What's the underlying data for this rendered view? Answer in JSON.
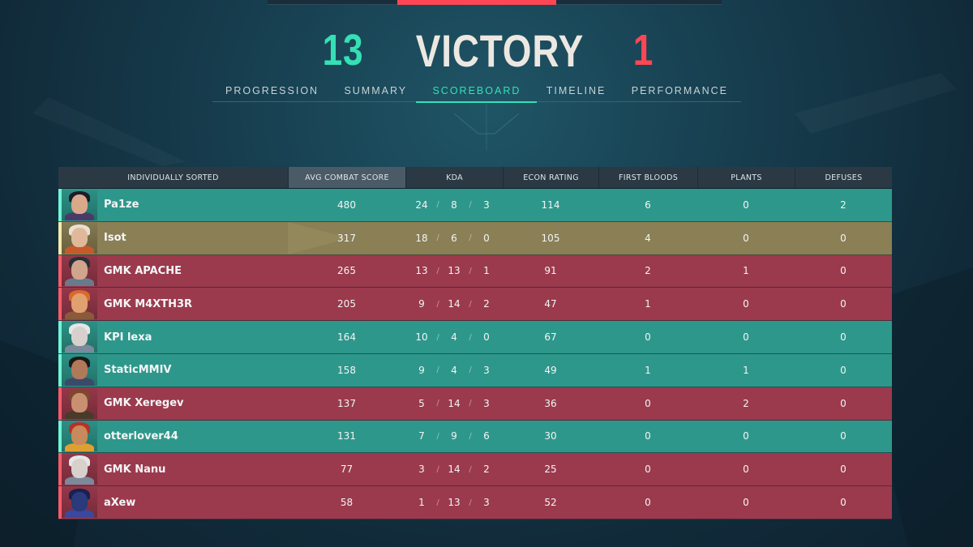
{
  "header": {
    "ally_score": "13",
    "result": "VICTORY",
    "enemy_score": "1"
  },
  "tabs": [
    {
      "label": "PROGRESSION",
      "active": false
    },
    {
      "label": "SUMMARY",
      "active": false
    },
    {
      "label": "SCOREBOARD",
      "active": true
    },
    {
      "label": "TIMELINE",
      "active": false
    },
    {
      "label": "PERFORMANCE",
      "active": false
    }
  ],
  "scoreboard": {
    "headers": {
      "name": "INDIVIDUALLY SORTED",
      "acs": "AVG COMBAT SCORE",
      "kda": "KDA",
      "econ": "ECON RATING",
      "fb": "FIRST BLOODS",
      "plants": "PLANTS",
      "defuses": "DEFUSES"
    },
    "colors": {
      "ally": "#2e978b",
      "enemy": "#9b3a4d",
      "self": "#8a7f55",
      "accent": "#35e0b5",
      "red": "#ff4655"
    },
    "rows": [
      {
        "name": "Pa1ze",
        "team": "ally",
        "acs": "480",
        "k": "24",
        "d": "8",
        "a": "3",
        "econ": "114",
        "fb": "6",
        "plants": "0",
        "defuses": "2",
        "skin": "#d9a98a",
        "hair": "#1c1c2a",
        "outfit": "#4a3a6a"
      },
      {
        "name": "Isot",
        "team": "self",
        "acs": "317",
        "k": "18",
        "d": "6",
        "a": "0",
        "econ": "105",
        "fb": "4",
        "plants": "0",
        "defuses": "0",
        "skin": "#e0b89a",
        "hair": "#e8e0d0",
        "outfit": "#c65a2a"
      },
      {
        "name": "GMK APACHE",
        "team": "enemy",
        "acs": "265",
        "k": "13",
        "d": "13",
        "a": "1",
        "econ": "91",
        "fb": "2",
        "plants": "1",
        "defuses": "0",
        "skin": "#d0a58c",
        "hair": "#2a2f3a",
        "outfit": "#6a7a8a"
      },
      {
        "name": "GMK M4XTH3R",
        "team": "enemy",
        "acs": "205",
        "k": "9",
        "d": "14",
        "a": "2",
        "econ": "47",
        "fb": "1",
        "plants": "0",
        "defuses": "0",
        "skin": "#e2a070",
        "hair": "#d86a2a",
        "outfit": "#8a5a3a"
      },
      {
        "name": "KPI lexa",
        "team": "ally",
        "acs": "164",
        "k": "10",
        "d": "4",
        "a": "0",
        "econ": "67",
        "fb": "0",
        "plants": "0",
        "defuses": "0",
        "skin": "#d8d0cc",
        "hair": "#e6e6e6",
        "outfit": "#7a8a9a"
      },
      {
        "name": "StaticMMIV",
        "team": "ally",
        "acs": "158",
        "k": "9",
        "d": "4",
        "a": "3",
        "econ": "49",
        "fb": "1",
        "plants": "1",
        "defuses": "0",
        "skin": "#b07a5a",
        "hair": "#1a1a1a",
        "outfit": "#3a4a6a"
      },
      {
        "name": "GMK Xeregev",
        "team": "enemy",
        "acs": "137",
        "k": "5",
        "d": "14",
        "a": "3",
        "econ": "36",
        "fb": "0",
        "plants": "2",
        "defuses": "0",
        "skin": "#c89070",
        "hair": "#7a4a2a",
        "outfit": "#4a3a2a"
      },
      {
        "name": "otterlover44",
        "team": "ally",
        "acs": "131",
        "k": "7",
        "d": "9",
        "a": "6",
        "econ": "30",
        "fb": "0",
        "plants": "0",
        "defuses": "0",
        "skin": "#c88a5a",
        "hair": "#b8302a",
        "outfit": "#e0a030"
      },
      {
        "name": "GMK Nanu",
        "team": "enemy",
        "acs": "77",
        "k": "3",
        "d": "14",
        "a": "2",
        "econ": "25",
        "fb": "0",
        "plants": "0",
        "defuses": "0",
        "skin": "#d8d0cc",
        "hair": "#e6e6e6",
        "outfit": "#7a8a9a"
      },
      {
        "name": "aXew",
        "team": "enemy",
        "acs": "58",
        "k": "1",
        "d": "13",
        "a": "3",
        "econ": "52",
        "fb": "0",
        "plants": "0",
        "defuses": "0",
        "skin": "#2a3a7a",
        "hair": "#1a2050",
        "outfit": "#3a48a0"
      }
    ]
  }
}
